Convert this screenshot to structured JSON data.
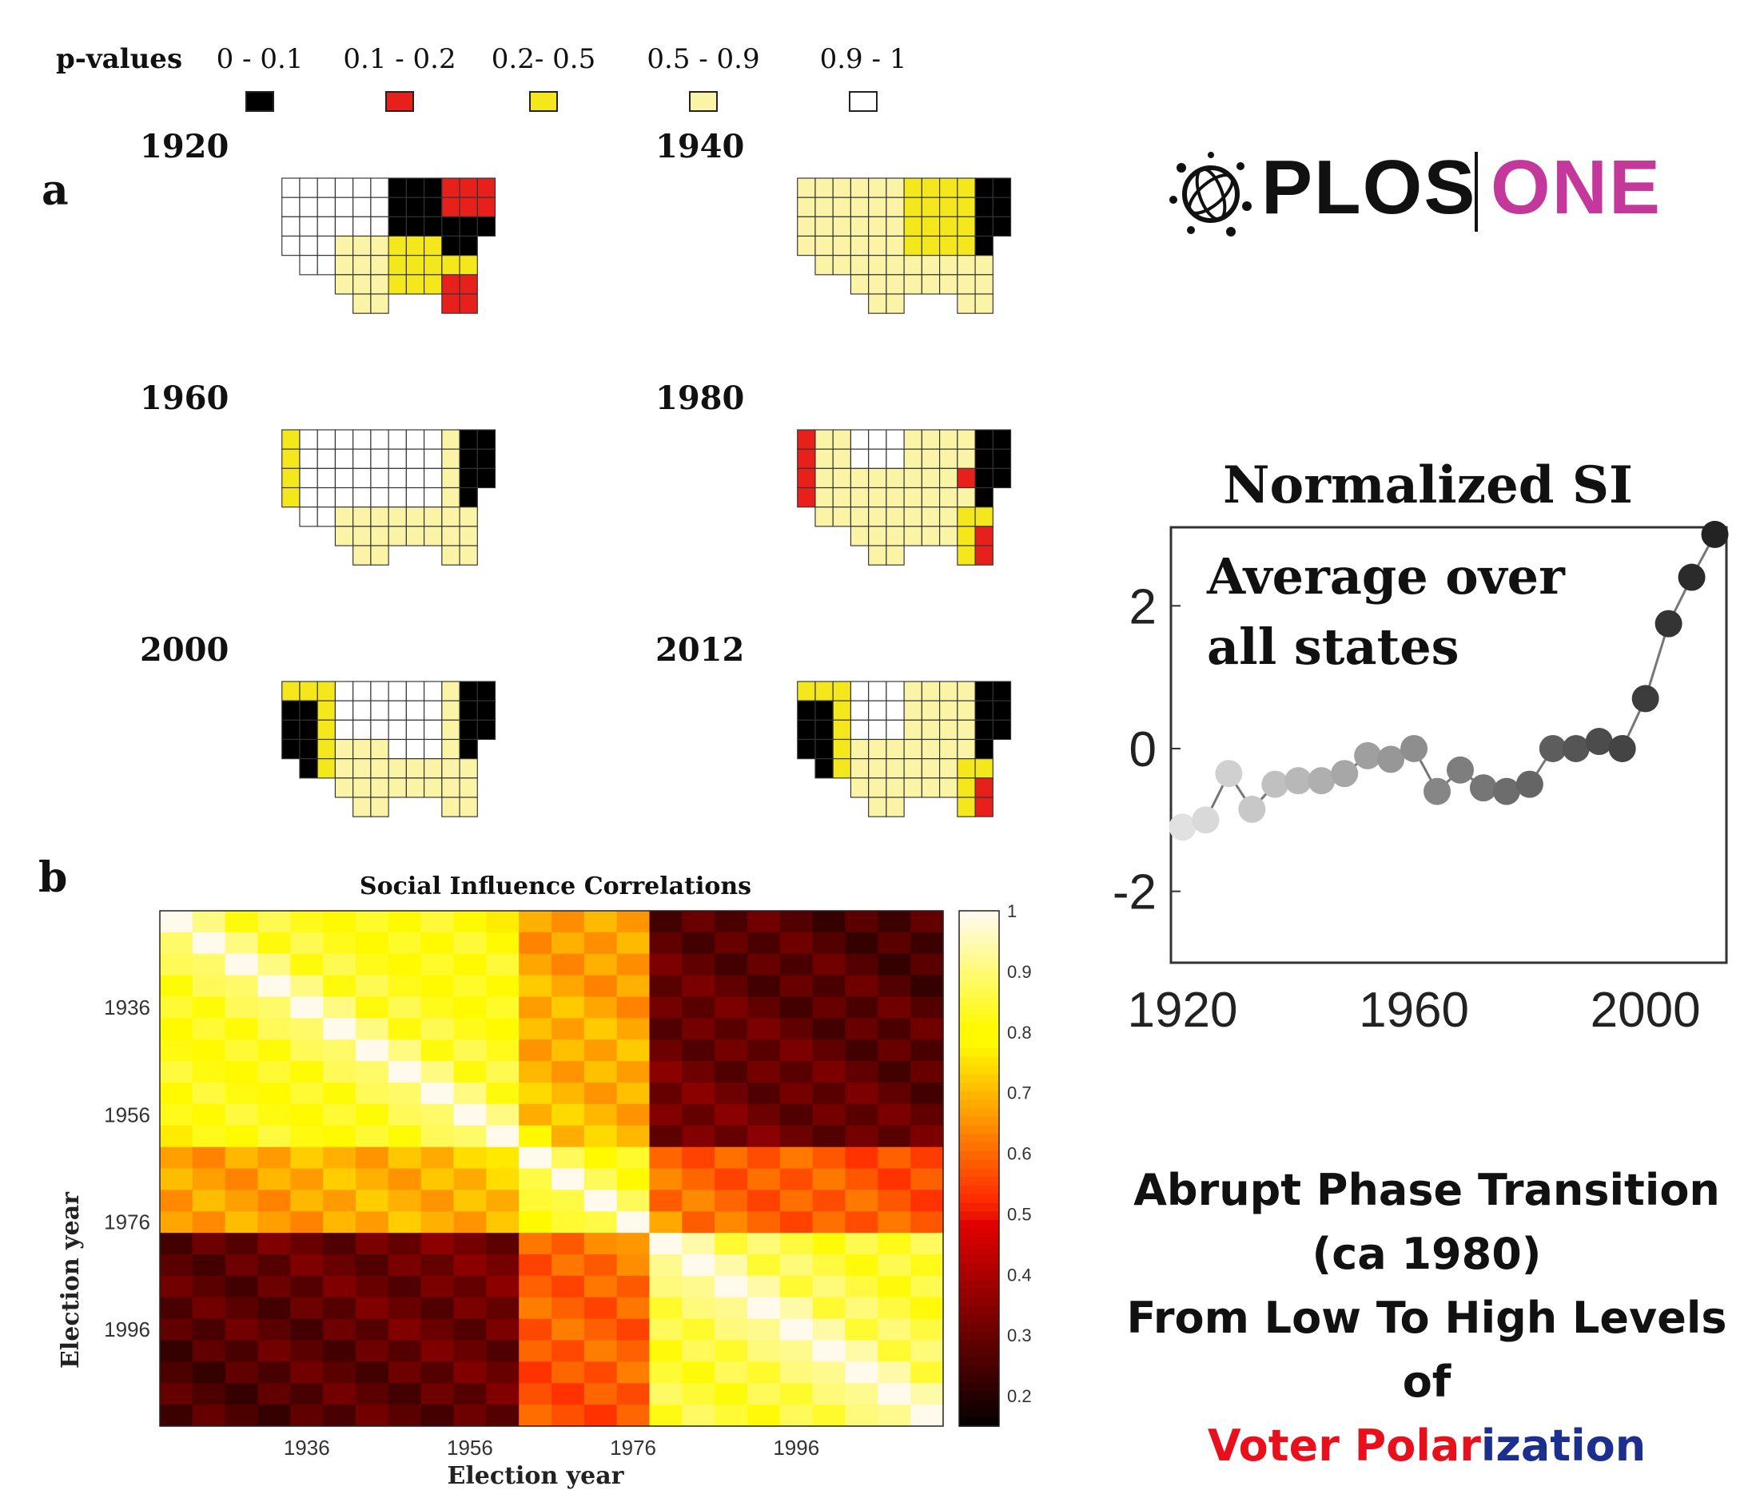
{
  "legend": {
    "title": "p-values",
    "items": [
      {
        "range": "0 - 0.1",
        "color": "#000000"
      },
      {
        "range": "0.1 - 0.2",
        "color": "#e8201c"
      },
      {
        "range": "0.2- 0.5",
        "color": "#f4e81c"
      },
      {
        "range": "0.5 - 0.9",
        "color": "#fbf3a6"
      },
      {
        "range": "0.9 - 1",
        "color": "#ffffff"
      }
    ]
  },
  "panel_a": {
    "letter": "a",
    "maps": [
      {
        "year": "1920",
        "pattern": "1920"
      },
      {
        "year": "1940",
        "pattern": "1940"
      },
      {
        "year": "1960",
        "pattern": "1960"
      },
      {
        "year": "1980",
        "pattern": "1980"
      },
      {
        "year": "2000",
        "pattern": "2000"
      },
      {
        "year": "2012",
        "pattern": "2012"
      }
    ]
  },
  "panel_b": {
    "letter": "b",
    "title": "Social Influence Correlations",
    "xlabel": "Election year",
    "ylabel": "Election year",
    "x_ticks": [
      "1936",
      "1956",
      "1976",
      "1996"
    ],
    "y_ticks": [
      "1936",
      "1956",
      "1976",
      "1996"
    ],
    "colorbar_ticks": [
      "1",
      "0.9",
      "0.8",
      "0.7",
      "0.6",
      "0.5",
      "0.4",
      "0.3",
      "0.2"
    ]
  },
  "logo": {
    "left": "PLOS",
    "right": "ONE",
    "left_color": "#111111",
    "right_color": "#c4379b"
  },
  "si_panel": {
    "title": "Normalized SI",
    "note_line1": "Average over",
    "note_line2": "all states"
  },
  "caption": {
    "line1": "Abrupt Phase Transition",
    "line2": "(ca 1980)",
    "line3": "From Low To High Levels of",
    "word_voter": "Voter",
    "word_polar": "Polar",
    "word_ization": "ization",
    "voter_color": "#e8101c",
    "ization_color": "#1c2f8f"
  },
  "chart_data": [
    {
      "type": "heatmap",
      "title": "Social Influence Correlations",
      "xlabel": "Election year",
      "ylabel": "Election year",
      "x_tick_labels": [
        "1936",
        "1956",
        "1976",
        "1996"
      ],
      "y_tick_labels": [
        "1936",
        "1956",
        "1976",
        "1996"
      ],
      "colorbar_range": [
        0.15,
        1
      ],
      "x": [
        1920,
        1924,
        1928,
        1932,
        1936,
        1940,
        1944,
        1948,
        1952,
        1956,
        1960,
        1964,
        1968,
        1972,
        1976,
        1980,
        1984,
        1988,
        1992,
        1996,
        2000,
        2004,
        2008,
        2012
      ],
      "blocks": [
        {
          "years": [
            1920,
            1960
          ],
          "years2": [
            1920,
            1960
          ],
          "value": 0.85
        },
        {
          "years": [
            1964,
            1976
          ],
          "years2": [
            1964,
            1976
          ],
          "value": 0.82
        },
        {
          "years": [
            1980,
            2012
          ],
          "years2": [
            1980,
            2012
          ],
          "value": 0.88
        },
        {
          "years": [
            1920,
            1960
          ],
          "years2": [
            1964,
            1976
          ],
          "value": 0.72
        },
        {
          "years": [
            1920,
            1960
          ],
          "years2": [
            1980,
            2012
          ],
          "value": 0.35
        },
        {
          "years": [
            1964,
            1976
          ],
          "years2": [
            1980,
            2012
          ],
          "value": 0.62
        }
      ]
    },
    {
      "type": "line",
      "title": "Normalized SI",
      "annotation": "Average over all states",
      "x": [
        1920,
        1924,
        1928,
        1932,
        1936,
        1940,
        1944,
        1948,
        1952,
        1956,
        1960,
        1964,
        1968,
        1972,
        1976,
        1980,
        1984,
        1988,
        1992,
        1996,
        2000,
        2004,
        2008,
        2012
      ],
      "y": [
        -1.1,
        -1.0,
        -0.35,
        -0.85,
        -0.5,
        -0.45,
        -0.45,
        -0.35,
        -0.1,
        -0.15,
        0.0,
        -0.6,
        -0.3,
        -0.55,
        -0.6,
        -0.5,
        0.0,
        0.0,
        0.1,
        0.0,
        0.7,
        1.75,
        2.4,
        3.0
      ],
      "x_ticks": [
        1920,
        1960,
        2000
      ],
      "y_ticks": [
        -2,
        0,
        2
      ],
      "xlim": [
        1918,
        2014
      ],
      "ylim": [
        -3,
        3.1
      ]
    }
  ]
}
